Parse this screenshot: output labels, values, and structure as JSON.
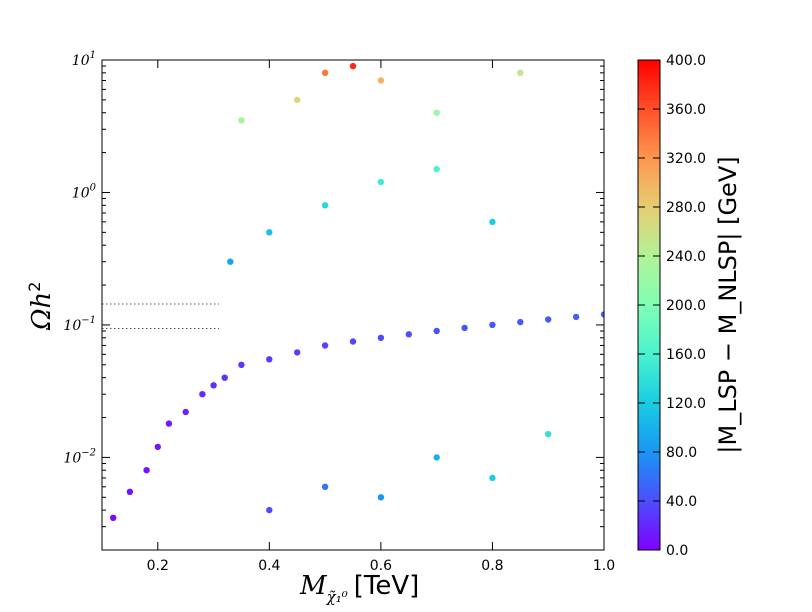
{
  "chart_data": {
    "type": "scatter",
    "title": "",
    "xlabel_main": "M",
    "xlabel_sub": "χ̃₁⁰",
    "xlabel_unit": "[TeV]",
    "ylabel_main": "Ωh",
    "ylabel_sup": "2",
    "xlim": [
      0.1,
      1.0
    ],
    "ylim": [
      0.002,
      10
    ],
    "yscale": "log",
    "grid": false,
    "x_ticks": [
      {
        "value": 0.2,
        "label": "0.2"
      },
      {
        "value": 0.4,
        "label": "0.4"
      },
      {
        "value": 0.6,
        "label": "0.6"
      },
      {
        "value": 0.8,
        "label": "0.8"
      },
      {
        "value": 1.0,
        "label": "1.0"
      }
    ],
    "y_ticks": [
      {
        "value": 0.01,
        "base": "10",
        "exp": "−2"
      },
      {
        "value": 0.1,
        "base": "10",
        "exp": "−1"
      },
      {
        "value": 1,
        "base": "10",
        "exp": "0"
      },
      {
        "value": 10,
        "base": "10",
        "exp": "1"
      }
    ],
    "reference_lines": [
      0.094,
      0.144
    ],
    "colorbar": {
      "label": "|M_LSP − M_NLSP| [GeV]",
      "min": 0,
      "max": 400,
      "ticks": [
        "0.0",
        "40.0",
        "80.0",
        "120.0",
        "160.0",
        "200.0",
        "240.0",
        "280.0",
        "320.0",
        "360.0",
        "400.0"
      ]
    },
    "points": [
      [
        0.12,
        0.0035,
        5
      ],
      [
        0.15,
        0.0055,
        8
      ],
      [
        0.18,
        0.008,
        10
      ],
      [
        0.2,
        0.012,
        12
      ],
      [
        0.22,
        0.018,
        15
      ],
      [
        0.25,
        0.022,
        18
      ],
      [
        0.28,
        0.03,
        20
      ],
      [
        0.3,
        0.035,
        22
      ],
      [
        0.32,
        0.04,
        25
      ],
      [
        0.35,
        0.05,
        28
      ],
      [
        0.4,
        0.055,
        30
      ],
      [
        0.45,
        0.062,
        32
      ],
      [
        0.5,
        0.07,
        34
      ],
      [
        0.55,
        0.075,
        36
      ],
      [
        0.6,
        0.08,
        38
      ],
      [
        0.65,
        0.085,
        40
      ],
      [
        0.7,
        0.09,
        42
      ],
      [
        0.75,
        0.095,
        44
      ],
      [
        0.8,
        0.1,
        45
      ],
      [
        0.85,
        0.105,
        46
      ],
      [
        0.9,
        0.11,
        48
      ],
      [
        0.95,
        0.115,
        50
      ],
      [
        1.0,
        0.12,
        50
      ],
      [
        0.33,
        0.3,
        90
      ],
      [
        0.4,
        0.5,
        110
      ],
      [
        0.5,
        0.8,
        130
      ],
      [
        0.6,
        1.2,
        150
      ],
      [
        0.7,
        1.5,
        160
      ],
      [
        0.8,
        0.6,
        120
      ],
      [
        0.35,
        3.5,
        230
      ],
      [
        0.45,
        5,
        270
      ],
      [
        0.5,
        8,
        340
      ],
      [
        0.55,
        9,
        380
      ],
      [
        0.6,
        7,
        300
      ],
      [
        0.7,
        4,
        220
      ],
      [
        0.85,
        8,
        250
      ],
      [
        0.4,
        0.004,
        40
      ],
      [
        0.5,
        0.006,
        60
      ],
      [
        0.6,
        0.005,
        80
      ],
      [
        0.7,
        0.01,
        100
      ],
      [
        0.8,
        0.007,
        120
      ],
      [
        0.9,
        0.015,
        140
      ]
    ]
  }
}
